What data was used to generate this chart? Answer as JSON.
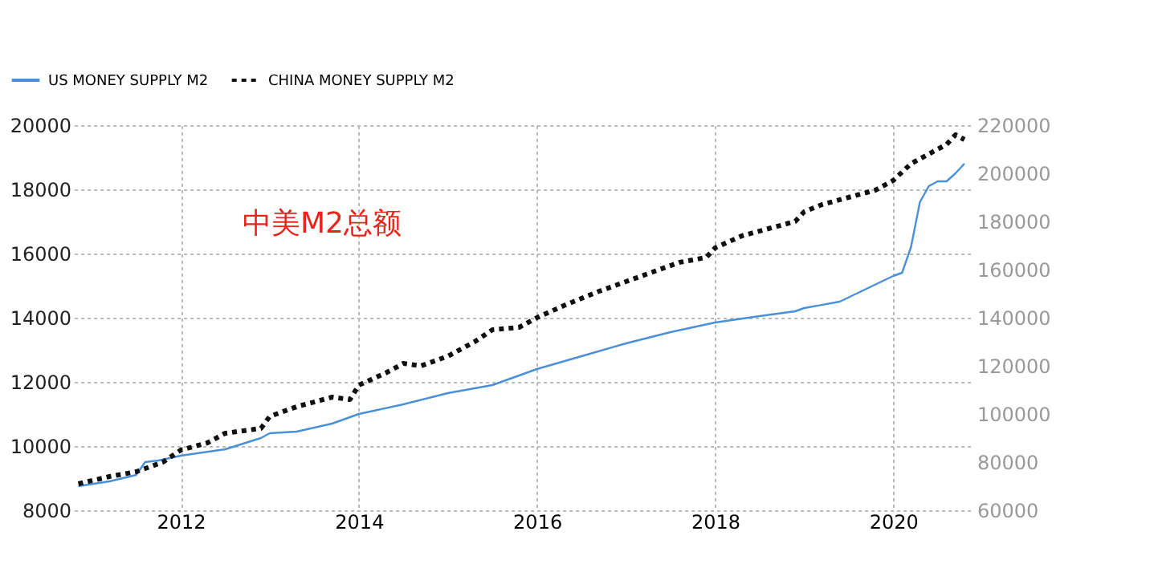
{
  "chart_data": {
    "type": "line",
    "annotations": [
      "中美M2总额"
    ],
    "xlim": [
      2010.8,
      2020.9
    ],
    "xticks": [
      2012,
      2014,
      2016,
      2018,
      2020
    ],
    "ylim": [
      8000,
      20000
    ],
    "yticks": [
      8000,
      10000,
      12000,
      14000,
      16000,
      18000,
      20000
    ],
    "y2lim": [
      60000,
      220000
    ],
    "y2ticks": [
      60000,
      80000,
      100000,
      120000,
      140000,
      160000,
      180000,
      200000,
      220000
    ],
    "grid": true,
    "legend": "top left",
    "series": [
      {
        "name": "US MONEY SUPPLY M2",
        "color": "#4a90d9",
        "line_style": "solid",
        "x": [
          2010.85,
          2011.2,
          2011.5,
          2011.6,
          2011.75,
          2012.0,
          2012.5,
          2012.9,
          2013.0,
          2013.3,
          2013.7,
          2014.0,
          2014.5,
          2015.0,
          2015.5,
          2016.0,
          2016.5,
          2017.0,
          2017.5,
          2018.0,
          2018.5,
          2018.9,
          2019.0,
          2019.4,
          2019.7,
          2020.0,
          2020.1,
          2020.2,
          2020.3,
          2020.4,
          2020.5,
          2020.6,
          2020.7,
          2020.8
        ],
        "values": [
          8750,
          8900,
          9100,
          9500,
          9550,
          9700,
          9900,
          10250,
          10400,
          10450,
          10700,
          11000,
          11300,
          11650,
          11900,
          12400,
          12800,
          13200,
          13550,
          13850,
          14050,
          14200,
          14300,
          14500,
          14900,
          15300,
          15400,
          16200,
          17600,
          18100,
          18250,
          18250,
          18500,
          18800
        ]
      },
      {
        "name": "CHINA MONEY SUPPLY M2",
        "color": "#111111",
        "line_style": "dotted",
        "axis": "y2",
        "x": [
          2010.85,
          2011.2,
          2011.5,
          2011.8,
          2012.0,
          2012.3,
          2012.5,
          2012.9,
          2013.0,
          2013.3,
          2013.7,
          2013.9,
          2014.0,
          2014.3,
          2014.5,
          2014.7,
          2015.0,
          2015.3,
          2015.5,
          2015.8,
          2016.0,
          2016.3,
          2016.7,
          2017.0,
          2017.3,
          2017.6,
          2017.9,
          2018.0,
          2018.3,
          2018.6,
          2018.9,
          2019.0,
          2019.2,
          2019.5,
          2019.8,
          2020.0,
          2020.2,
          2020.4,
          2020.6,
          2020.7,
          2020.8
        ],
        "values": [
          71000,
          74000,
          76000,
          80000,
          85000,
          88000,
          92000,
          94000,
          99000,
          103000,
          107000,
          106000,
          112000,
          117000,
          121000,
          120000,
          124000,
          130000,
          135000,
          136000,
          140000,
          145000,
          151000,
          155000,
          159000,
          163000,
          165000,
          169000,
          174000,
          177000,
          180000,
          184000,
          187000,
          190000,
          193000,
          197000,
          204000,
          208000,
          212000,
          216000,
          214000
        ]
      }
    ]
  }
}
